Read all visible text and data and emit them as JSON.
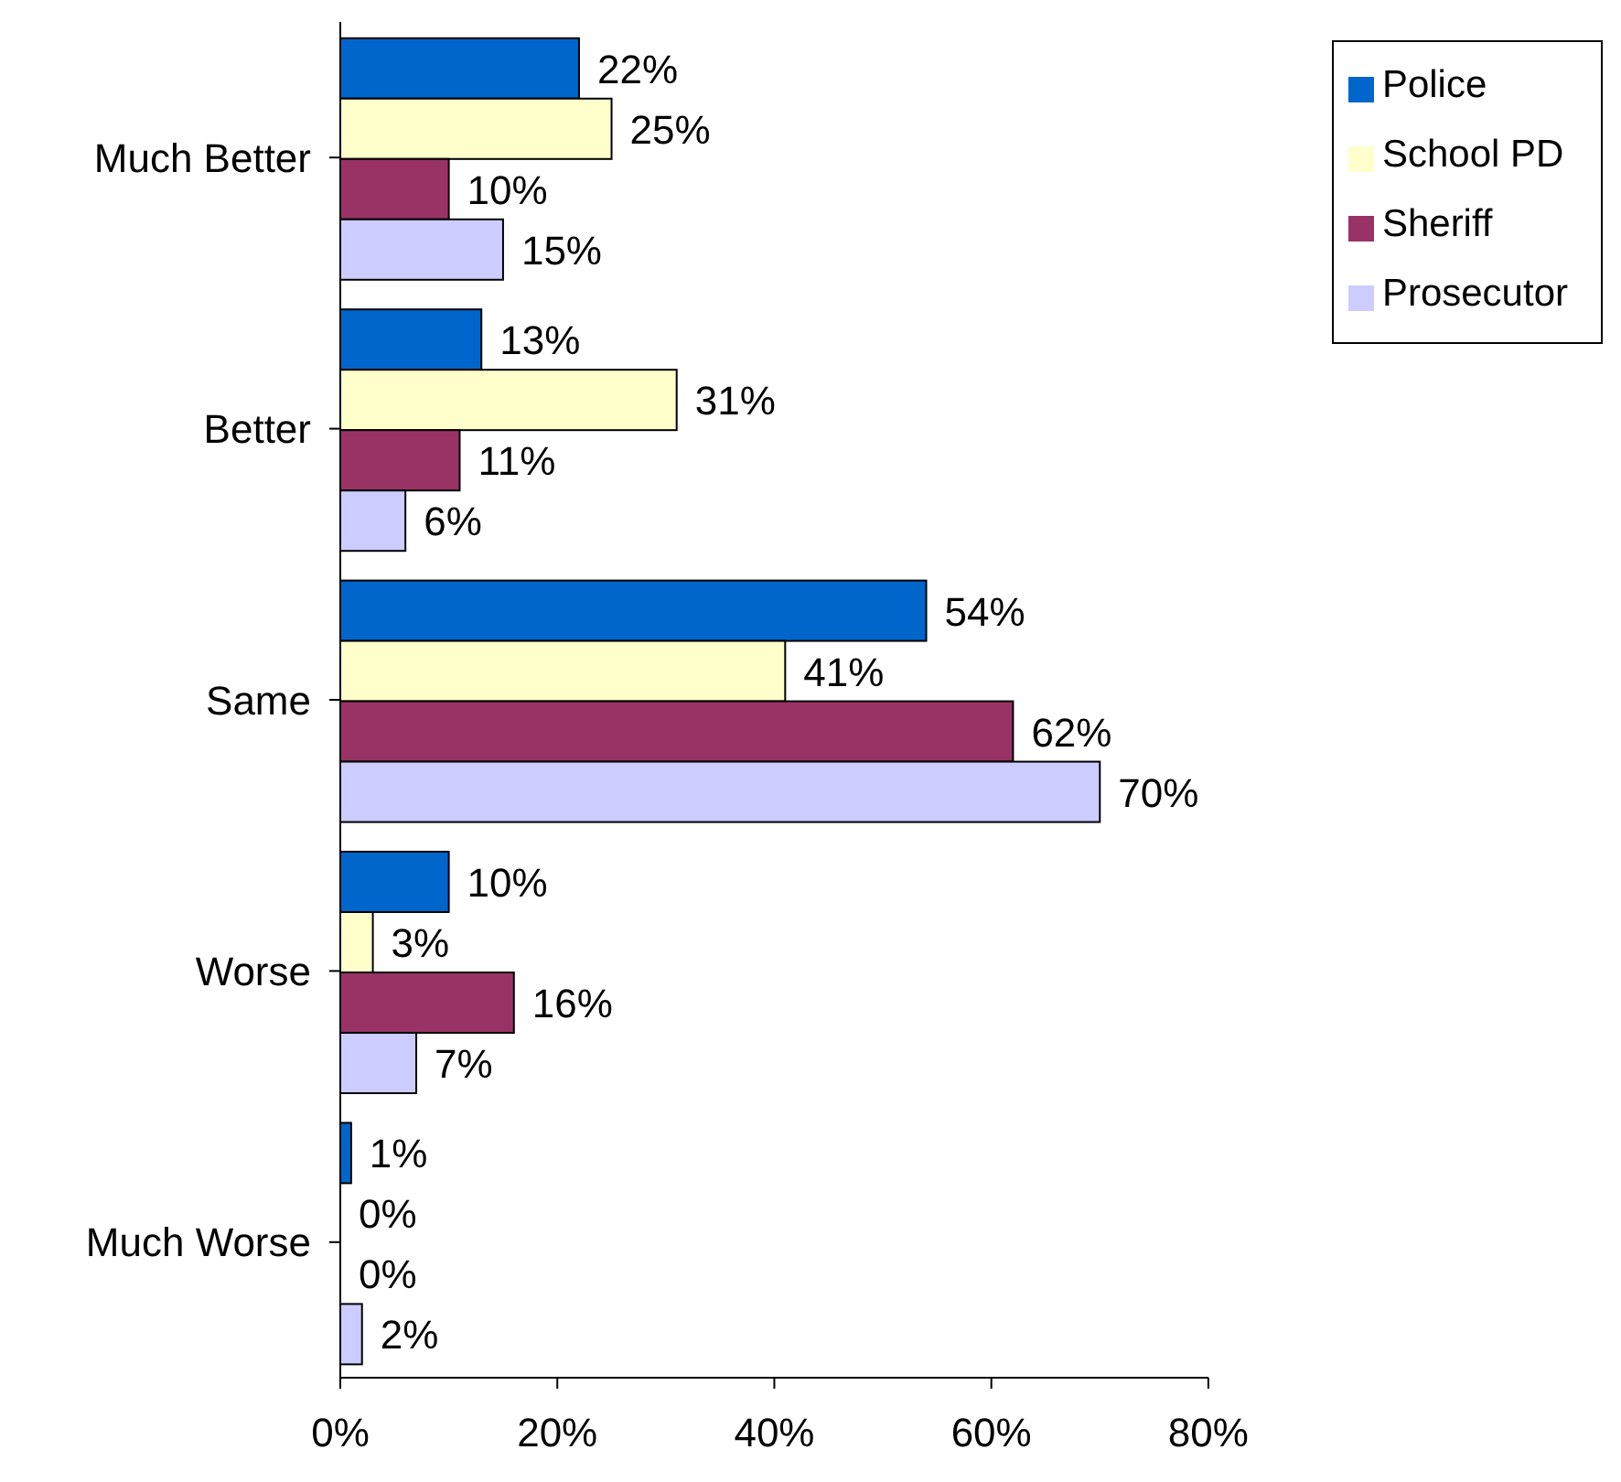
{
  "chart_data": {
    "type": "bar",
    "orientation": "horizontal",
    "categories": [
      "Much Better",
      "Better",
      "Same",
      "Worse",
      "Much Worse"
    ],
    "series": [
      {
        "name": "Police",
        "color": "#0066cc",
        "values": [
          22,
          13,
          54,
          10,
          1
        ],
        "value_labels": [
          "22%",
          "13%",
          "54%",
          "10%",
          "1%"
        ]
      },
      {
        "name": "School PD",
        "color": "#ffffcc",
        "values": [
          25,
          31,
          41,
          3,
          0
        ],
        "value_labels": [
          "25%",
          "31%",
          "41%",
          "3%",
          "0%"
        ]
      },
      {
        "name": "Sheriff",
        "color": "#993366",
        "values": [
          10,
          11,
          62,
          16,
          0
        ],
        "value_labels": [
          "10%",
          "11%",
          "62%",
          "16%",
          "0%"
        ]
      },
      {
        "name": "Prosecutor",
        "color": "#ccccff",
        "values": [
          15,
          6,
          70,
          7,
          2
        ],
        "value_labels": [
          "15%",
          "6%",
          "70%",
          "7%",
          "2%"
        ]
      }
    ],
    "xlim": [
      0,
      80
    ],
    "xticks": [
      {
        "value": 0,
        "label": "0%"
      },
      {
        "value": 20,
        "label": "20%"
      },
      {
        "value": 40,
        "label": "40%"
      },
      {
        "value": 60,
        "label": "60%"
      },
      {
        "value": 80,
        "label": "80%"
      }
    ],
    "grid": false,
    "legend": "top right"
  }
}
